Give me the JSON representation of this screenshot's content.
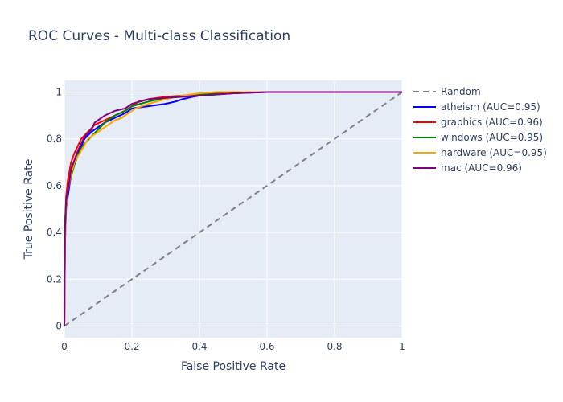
{
  "chart_data": {
    "type": "line",
    "title": "ROC Curves - Multi-class Classification",
    "xlabel": "False Positive Rate",
    "ylabel": "True Positive Rate",
    "xlim": [
      0,
      1
    ],
    "ylim": [
      -0.05,
      1.05
    ],
    "xticks": [
      0,
      0.2,
      0.4,
      0.6,
      0.8,
      1
    ],
    "yticks": [
      0,
      0.2,
      0.4,
      0.6,
      0.8,
      1
    ],
    "tick_labels_x": [
      "0",
      "0.2",
      "0.4",
      "0.6",
      "0.8",
      "1"
    ],
    "tick_labels_y": [
      "0",
      "0.2",
      "0.4",
      "0.6",
      "0.8",
      "1"
    ],
    "grid": true,
    "legend_position": "right",
    "series": [
      {
        "name": "Random",
        "color": "#808080",
        "dash": true,
        "x": [
          0,
          1
        ],
        "y": [
          0,
          1
        ]
      },
      {
        "name": "atheism (AUC=0.95)",
        "color": "#0000ff",
        "dash": false,
        "x": [
          0,
          0.002,
          0.005,
          0.01,
          0.015,
          0.02,
          0.03,
          0.04,
          0.05,
          0.06,
          0.08,
          0.1,
          0.12,
          0.15,
          0.18,
          0.2,
          0.25,
          0.3,
          0.33,
          0.35,
          0.38,
          0.4,
          0.45,
          0.5,
          0.6,
          0.8,
          1
        ],
        "y": [
          0,
          0.35,
          0.5,
          0.55,
          0.6,
          0.65,
          0.7,
          0.74,
          0.77,
          0.8,
          0.83,
          0.85,
          0.87,
          0.89,
          0.91,
          0.93,
          0.94,
          0.95,
          0.96,
          0.97,
          0.98,
          0.985,
          0.99,
          0.995,
          1,
          1,
          1
        ]
      },
      {
        "name": "graphics (AUC=0.96)",
        "color": "#ff0000",
        "dash": false,
        "x": [
          0,
          0.002,
          0.005,
          0.01,
          0.015,
          0.02,
          0.03,
          0.04,
          0.05,
          0.07,
          0.09,
          0.12,
          0.15,
          0.18,
          0.2,
          0.22,
          0.25,
          0.3,
          0.35,
          0.4,
          0.45,
          0.5,
          0.6,
          0.8,
          1
        ],
        "y": [
          0,
          0.4,
          0.55,
          0.62,
          0.66,
          0.7,
          0.74,
          0.77,
          0.8,
          0.83,
          0.86,
          0.88,
          0.9,
          0.92,
          0.94,
          0.96,
          0.97,
          0.98,
          0.985,
          0.99,
          0.995,
          1,
          1,
          1,
          1
        ]
      },
      {
        "name": "windows (AUC=0.95)",
        "color": "#008000",
        "dash": false,
        "x": [
          0,
          0.002,
          0.005,
          0.01,
          0.02,
          0.03,
          0.04,
          0.05,
          0.06,
          0.08,
          0.1,
          0.12,
          0.15,
          0.18,
          0.2,
          0.25,
          0.3,
          0.35,
          0.4,
          0.45,
          0.5,
          0.6,
          0.8,
          1
        ],
        "y": [
          0,
          0.45,
          0.52,
          0.58,
          0.64,
          0.69,
          0.73,
          0.76,
          0.78,
          0.81,
          0.84,
          0.87,
          0.9,
          0.92,
          0.94,
          0.96,
          0.975,
          0.985,
          0.99,
          0.995,
          1,
          1,
          1,
          1
        ]
      },
      {
        "name": "hardware (AUC=0.95)",
        "color": "#ffa500",
        "dash": false,
        "x": [
          0,
          0.002,
          0.005,
          0.01,
          0.02,
          0.03,
          0.05,
          0.07,
          0.09,
          0.11,
          0.13,
          0.15,
          0.17,
          0.19,
          0.21,
          0.25,
          0.3,
          0.35,
          0.4,
          0.45,
          0.5,
          0.6,
          0.8,
          1
        ],
        "y": [
          0,
          0.35,
          0.5,
          0.58,
          0.65,
          0.7,
          0.75,
          0.8,
          0.82,
          0.84,
          0.86,
          0.88,
          0.89,
          0.91,
          0.93,
          0.95,
          0.97,
          0.985,
          0.995,
          1,
          1,
          1,
          1,
          1
        ]
      },
      {
        "name": "mac (AUC=0.96)",
        "color": "#800080",
        "dash": false,
        "x": [
          0,
          0.002,
          0.005,
          0.01,
          0.015,
          0.02,
          0.03,
          0.04,
          0.05,
          0.06,
          0.08,
          0.09,
          0.1,
          0.12,
          0.15,
          0.18,
          0.2,
          0.25,
          0.3,
          0.35,
          0.4,
          0.45,
          0.5,
          0.6,
          0.8,
          1
        ],
        "y": [
          0,
          0.4,
          0.53,
          0.58,
          0.62,
          0.67,
          0.71,
          0.75,
          0.78,
          0.81,
          0.84,
          0.87,
          0.88,
          0.9,
          0.92,
          0.93,
          0.95,
          0.97,
          0.975,
          0.98,
          0.985,
          0.99,
          0.995,
          1,
          1,
          1
        ]
      }
    ]
  }
}
